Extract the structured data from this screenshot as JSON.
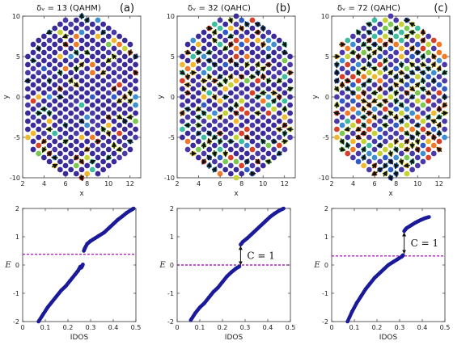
{
  "chart_data": [
    {
      "id": "a-top",
      "type": "scatter",
      "panel": "(a)",
      "title": "δᵥ = 13 (QAHM)",
      "xlabel": "x",
      "ylabel": "y",
      "xlim": [
        2,
        13
      ],
      "ylim": [
        -10,
        10
      ],
      "xticks": [
        2,
        4,
        6,
        8,
        10,
        12
      ],
      "yticks": [
        -10,
        -5,
        0,
        5,
        10
      ],
      "description_series": "honeycomb lattice sites colored by local magnetization"
    },
    {
      "id": "b-top",
      "type": "scatter",
      "panel": "(b)",
      "title": "δᵥ = 32 (QAHC)",
      "xlabel": "x",
      "ylabel": "y",
      "xlim": [
        2,
        13
      ],
      "ylim": [
        -10,
        10
      ],
      "xticks": [
        2,
        4,
        6,
        8,
        10,
        12
      ],
      "yticks": [
        -10,
        -5,
        0,
        5,
        10
      ]
    },
    {
      "id": "c-top",
      "type": "scatter",
      "panel": "(c)",
      "title": "δᵥ = 72 (QAHC)",
      "xlabel": "x",
      "ylabel": "y",
      "xlim": [
        2,
        13
      ],
      "ylim": [
        -10,
        10
      ],
      "xticks": [
        2,
        4,
        6,
        8,
        10,
        12
      ],
      "yticks": [
        -10,
        -5,
        0,
        5,
        10
      ]
    },
    {
      "id": "a-bottom",
      "type": "line",
      "xlabel": "IDOS",
      "ylabel": "E",
      "xlim": [
        0,
        0.5
      ],
      "ylim": [
        -2,
        2
      ],
      "xticks": [
        0,
        0.1,
        0.2,
        0.3,
        0.4,
        0.5
      ],
      "yticks": [
        -2,
        -1,
        0,
        1,
        2
      ],
      "fermi_level": 0.38,
      "series": [
        {
          "x": [
            0.07,
            0.09,
            0.11,
            0.13,
            0.15,
            0.17,
            0.19,
            0.21,
            0.23,
            0.245,
            0.255
          ],
          "y": [
            -2.0,
            -1.75,
            -1.5,
            -1.3,
            -1.1,
            -0.9,
            -0.75,
            -0.55,
            -0.35,
            -0.2,
            -0.05
          ]
        },
        {
          "x": [
            0.258,
            0.262,
            0.266
          ],
          "y": [
            -0.1,
            -0.05,
            0.02
          ]
        },
        {
          "x": [
            0.27,
            0.275,
            0.285,
            0.3,
            0.32,
            0.34,
            0.36,
            0.38,
            0.4,
            0.42,
            0.44,
            0.46,
            0.48,
            0.49
          ],
          "y": [
            0.5,
            0.6,
            0.75,
            0.85,
            0.95,
            1.05,
            1.15,
            1.3,
            1.45,
            1.6,
            1.72,
            1.85,
            1.95,
            2.0
          ]
        }
      ]
    },
    {
      "id": "b-bottom",
      "type": "line",
      "xlabel": "IDOS",
      "ylabel": "E",
      "xlim": [
        0,
        0.5
      ],
      "ylim": [
        -2,
        2
      ],
      "xticks": [
        0,
        0.1,
        0.2,
        0.3,
        0.4,
        0.5
      ],
      "yticks": [
        -2,
        -1,
        0,
        1,
        2
      ],
      "fermi_level": 0.0,
      "annotation": "C = 1",
      "gap": [
        0.28,
        -0.05,
        0.72
      ],
      "series": [
        {
          "x": [
            0.06,
            0.08,
            0.1,
            0.12,
            0.14,
            0.16,
            0.18,
            0.2,
            0.22,
            0.24,
            0.26,
            0.275
          ],
          "y": [
            -1.95,
            -1.7,
            -1.5,
            -1.35,
            -1.15,
            -0.95,
            -0.8,
            -0.6,
            -0.4,
            -0.25,
            -0.12,
            -0.05
          ]
        },
        {
          "x": [
            0.28,
            0.29,
            0.31,
            0.33,
            0.35,
            0.37,
            0.39,
            0.41,
            0.43,
            0.45,
            0.47
          ],
          "y": [
            0.72,
            0.82,
            0.95,
            1.1,
            1.25,
            1.4,
            1.55,
            1.7,
            1.82,
            1.92,
            2.0
          ]
        }
      ]
    },
    {
      "id": "c-bottom",
      "type": "line",
      "xlabel": "IDOS",
      "ylabel": "E",
      "xlim": [
        0,
        0.5
      ],
      "ylim": [
        -2,
        2
      ],
      "xticks": [
        0,
        0.1,
        0.2,
        0.3,
        0.4,
        0.5
      ],
      "yticks": [
        -2,
        -1,
        0,
        1,
        2
      ],
      "fermi_level": 0.32,
      "annotation": "C = 1",
      "gap": [
        0.32,
        0.35,
        1.2
      ],
      "series": [
        {
          "x": [
            0.07,
            0.09,
            0.11,
            0.13,
            0.15,
            0.17,
            0.19,
            0.21,
            0.23,
            0.25,
            0.27,
            0.29,
            0.31,
            0.315
          ],
          "y": [
            -2.0,
            -1.65,
            -1.35,
            -1.1,
            -0.85,
            -0.65,
            -0.45,
            -0.3,
            -0.15,
            0.0,
            0.1,
            0.2,
            0.3,
            0.35
          ]
        },
        {
          "x": [
            0.32,
            0.33,
            0.35,
            0.37,
            0.39,
            0.41,
            0.43
          ],
          "y": [
            1.2,
            1.3,
            1.4,
            1.5,
            1.58,
            1.65,
            1.7
          ]
        }
      ]
    }
  ]
}
